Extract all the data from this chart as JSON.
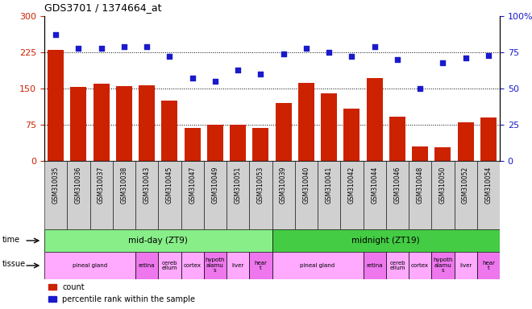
{
  "title": "GDS3701 / 1374664_at",
  "samples": [
    "GSM310035",
    "GSM310036",
    "GSM310037",
    "GSM310038",
    "GSM310043",
    "GSM310045",
    "GSM310047",
    "GSM310049",
    "GSM310051",
    "GSM310053",
    "GSM310039",
    "GSM310040",
    "GSM310041",
    "GSM310042",
    "GSM310044",
    "GSM310046",
    "GSM310048",
    "GSM310050",
    "GSM310052",
    "GSM310054"
  ],
  "counts": [
    230,
    153,
    160,
    155,
    157,
    125,
    68,
    75,
    75,
    68,
    120,
    162,
    140,
    108,
    172,
    92,
    30,
    28,
    80,
    90
  ],
  "percentiles": [
    87,
    78,
    78,
    79,
    79,
    72,
    57,
    55,
    63,
    60,
    74,
    78,
    75,
    72,
    79,
    70,
    50,
    68,
    71,
    73
  ],
  "ylim_left": [
    0,
    300
  ],
  "ylim_right": [
    0,
    100
  ],
  "yticks_left": [
    0,
    75,
    150,
    225,
    300
  ],
  "yticks_right": [
    0,
    25,
    50,
    75,
    100
  ],
  "bar_color": "#cc2200",
  "dot_color": "#1a1acc",
  "time_groups": [
    {
      "label": "mid-day (ZT9)",
      "start": 0,
      "end": 9,
      "color": "#88ee88"
    },
    {
      "label": "midnight (ZT19)",
      "start": 10,
      "end": 19,
      "color": "#44cc44"
    }
  ],
  "tissue_groups": [
    {
      "label": "pineal gland",
      "start": 0,
      "end": 3,
      "color": "#ffaaff"
    },
    {
      "label": "retina",
      "start": 4,
      "end": 4,
      "color": "#ee77ee"
    },
    {
      "label": "cereb\nellum",
      "start": 5,
      "end": 5,
      "color": "#ffaaff"
    },
    {
      "label": "cortex",
      "start": 6,
      "end": 6,
      "color": "#ffaaff"
    },
    {
      "label": "hypoth\nalamu\ns",
      "start": 7,
      "end": 7,
      "color": "#ee77ee"
    },
    {
      "label": "liver",
      "start": 8,
      "end": 8,
      "color": "#ffaaff"
    },
    {
      "label": "hear\nt",
      "start": 9,
      "end": 9,
      "color": "#ee77ee"
    },
    {
      "label": "pineal gland",
      "start": 10,
      "end": 13,
      "color": "#ffaaff"
    },
    {
      "label": "retina",
      "start": 14,
      "end": 14,
      "color": "#ee77ee"
    },
    {
      "label": "cereb\nellum",
      "start": 15,
      "end": 15,
      "color": "#ffaaff"
    },
    {
      "label": "cortex",
      "start": 16,
      "end": 16,
      "color": "#ffaaff"
    },
    {
      "label": "hypoth\nalamu\ns",
      "start": 17,
      "end": 17,
      "color": "#ee77ee"
    },
    {
      "label": "liver",
      "start": 18,
      "end": 18,
      "color": "#ffaaff"
    },
    {
      "label": "hear\nt",
      "start": 19,
      "end": 19,
      "color": "#ee77ee"
    }
  ],
  "label_count": "count",
  "label_percentile": "percentile rank within the sample",
  "time_label": "time",
  "tissue_label": "tissue"
}
